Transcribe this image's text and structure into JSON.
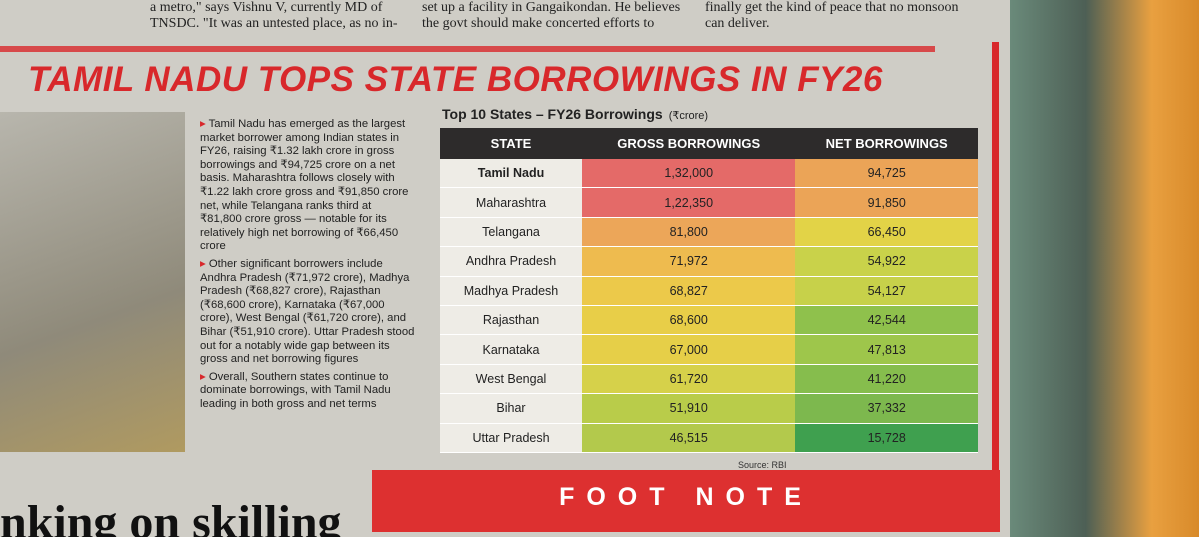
{
  "top_text": {
    "col1": [
      "a metro,\" says Vishnu V, currently MD of",
      "TNSDC. \"It was an untested place, as no in-"
    ],
    "col2": [
      "set up a facility in Gangaikondan. He believes",
      "the govt should make concerted efforts to"
    ],
    "col3": [
      "finally get the kind of peace that no monsoon",
      "can deliver."
    ]
  },
  "article": {
    "title": "TAMIL NADU TOPS STATE BORROWINGS IN FY26",
    "paragraphs": [
      "Tamil Nadu has emerged as the largest market borrower among Indian states in FY26, raising ₹1.32 lakh crore in gross borrowings and ₹94,725 crore on a net basis. Maharashtra follows closely with ₹1.22 lakh crore gross and ₹91,850 crore net, while Telangana ranks third at ₹81,800 crore gross — notable for its relatively high net borrowing of ₹66,450 crore",
      "Other significant borrowers include Andhra Pradesh (₹71,972 crore), Madhya Pradesh (₹68,827 crore), Rajasthan (₹68,600 crore), Karnataka (₹67,000 crore), West Bengal (₹61,720 crore), and Bihar (₹51,910 crore). Uttar Pradesh stood out for a notably wide gap between its gross and net borrowing figures",
      "Overall, Southern states continue to dominate borrowings, with Tamil Nadu leading in both gross and net terms"
    ]
  },
  "table": {
    "title": "Top 10 States – FY26 Borrowings",
    "unit": "(₹crore)",
    "header": [
      "STATE",
      "GROSS BORROWINGS",
      "NET BORROWINGS"
    ],
    "rows": [
      [
        "Tamil Nadu",
        "1,32,000",
        "94,725"
      ],
      [
        "Maharashtra",
        "1,22,350",
        "91,850"
      ],
      [
        "Telangana",
        "81,800",
        "66,450"
      ],
      [
        "Andhra Pradesh",
        "71,972",
        "54,922"
      ],
      [
        "Madhya Pradesh",
        "68,827",
        "54,127"
      ],
      [
        "Rajasthan",
        "68,600",
        "42,544"
      ],
      [
        "Karnataka",
        "67,000",
        "47,813"
      ],
      [
        "West Bengal",
        "61,720",
        "41,220"
      ],
      [
        "Bihar",
        "51,910",
        "37,332"
      ],
      [
        "Uttar Pradesh",
        "46,515",
        "15,728"
      ]
    ],
    "source": "Source: RBI"
  },
  "footer": {
    "banner": "FOOT NOTE",
    "headline": "nking on skilling"
  }
}
